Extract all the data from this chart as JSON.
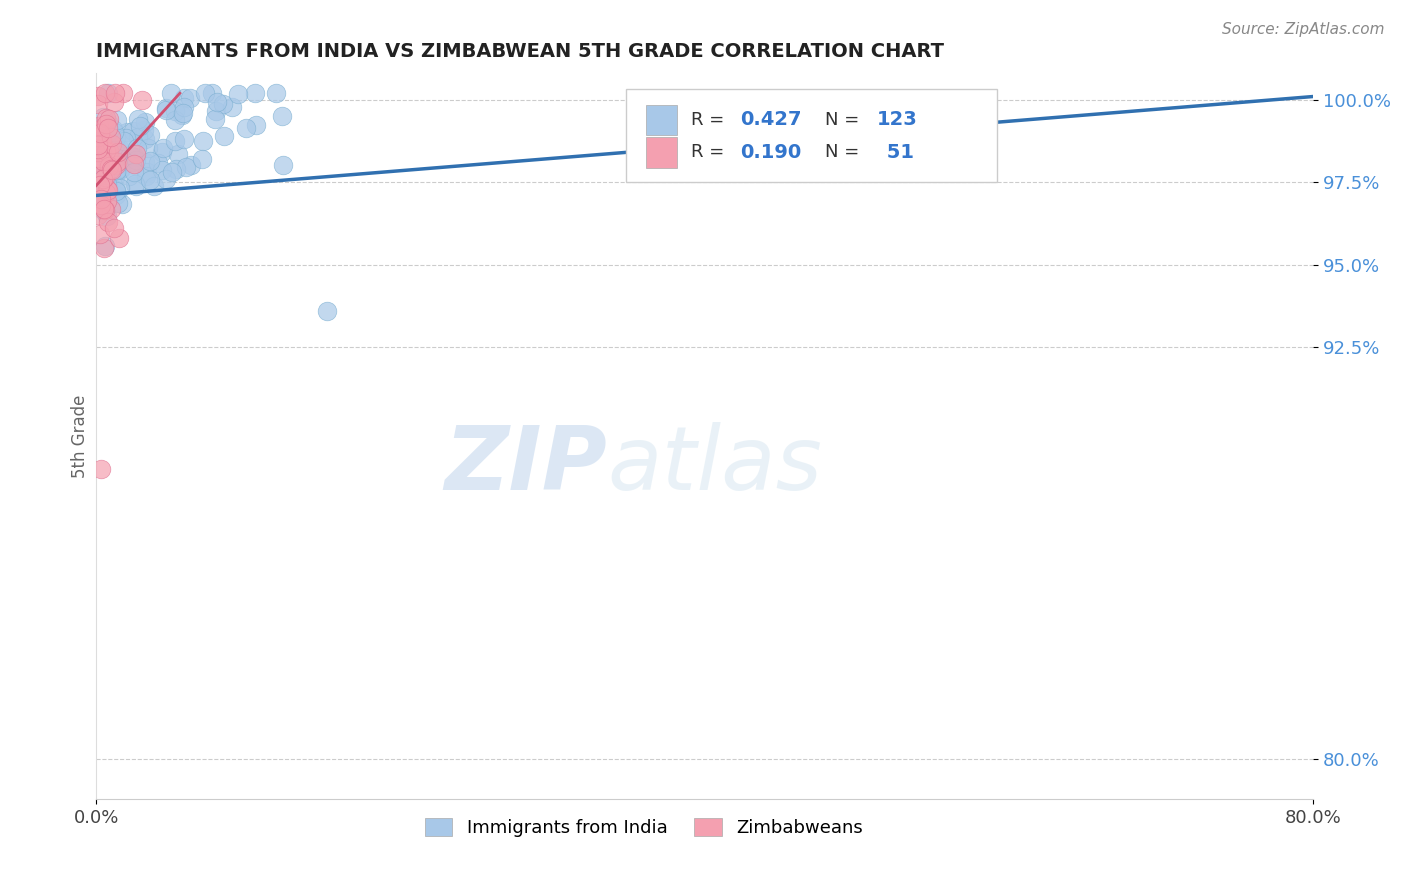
{
  "title": "IMMIGRANTS FROM INDIA VS ZIMBABWEAN 5TH GRADE CORRELATION CHART",
  "source_text": "Source: ZipAtlas.com",
  "ylabel": "5th Grade",
  "xmin": 0.0,
  "xmax": 0.8,
  "ymin": 0.788,
  "ymax": 1.008,
  "yticks": [
    0.8,
    0.925,
    0.95,
    0.975,
    1.0
  ],
  "ytick_labels": [
    "80.0%",
    "92.5%",
    "95.0%",
    "97.5%",
    "100.0%"
  ],
  "blue_color": "#a8c8e8",
  "blue_edge_color": "#7aaed0",
  "blue_line_color": "#3070b0",
  "pink_color": "#f4a0b0",
  "pink_edge_color": "#e07090",
  "pink_line_color": "#d05070",
  "legend_R_blue": "0.427",
  "legend_N_blue": "123",
  "legend_R_pink": "0.190",
  "legend_N_pink": "51",
  "watermark_zip": "ZIP",
  "watermark_atlas": "atlas",
  "blue_trend_x0": 0.0,
  "blue_trend_x1": 0.8,
  "blue_trend_y0": 0.971,
  "blue_trend_y1": 1.001,
  "pink_trend_x0": 0.0,
  "pink_trend_x1": 0.055,
  "pink_trend_y0": 0.974,
  "pink_trend_y1": 1.002
}
